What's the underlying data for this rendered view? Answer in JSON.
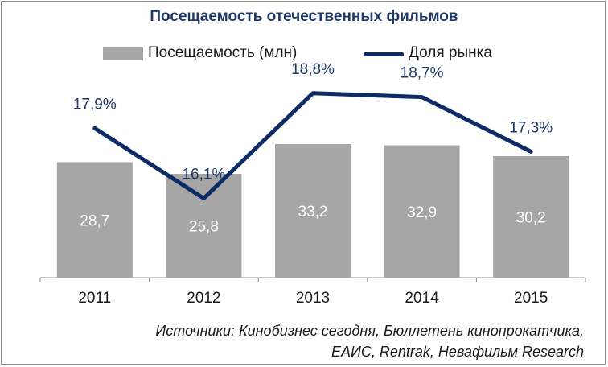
{
  "chart_data": {
    "type": "bar",
    "title": "Посещаемость отечественных фильмов",
    "categories": [
      "2011",
      "2012",
      "2013",
      "2014",
      "2015"
    ],
    "series": [
      {
        "name": "Посещаемость (млн)",
        "type": "bar",
        "values": [
          28.7,
          25.8,
          33.2,
          32.9,
          30.2
        ],
        "labels": [
          "28,7",
          "25,8",
          "33,2",
          "32,9",
          "30,2"
        ],
        "color": "#a6a6a6"
      },
      {
        "name": "Доля рынка",
        "type": "line",
        "values": [
          17.9,
          16.1,
          18.8,
          18.7,
          17.3
        ],
        "labels": [
          "17,9%",
          "16,1%",
          "18,8%",
          "18,7%",
          "17,3%"
        ],
        "color": "#0d2b64"
      }
    ],
    "legend": "top",
    "grid": false
  },
  "source": {
    "line1": "Источники: Кинобизнес сегодня, Бюллетень кинопрокатчика,",
    "line2": "ЕАИС, Rentrak, Невафильм Research"
  }
}
